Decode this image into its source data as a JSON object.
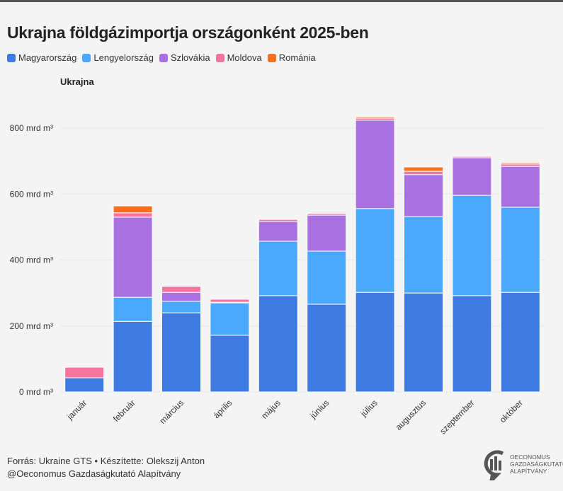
{
  "chart_data": {
    "type": "bar",
    "stacked": true,
    "title": "Ukrajna földgázimportja országonként 2025-ben",
    "ylabel": "Ukrajna",
    "unit": "mrd m³",
    "ylim": [
      0,
      900
    ],
    "yticks": [
      0,
      200,
      400,
      600,
      800
    ],
    "ytick_labels": [
      "0 mrd m³",
      "200 mrd m³",
      "400 mrd m³",
      "600 mrd m³",
      "800 mrd m³"
    ],
    "legend_position": "top-left",
    "categories": [
      "január",
      "február",
      "március",
      "április",
      "május",
      "június",
      "július",
      "augusztus",
      "szeptember",
      "október"
    ],
    "series": [
      {
        "name": "Magyarország",
        "color": "#3d7ae2",
        "values": [
          43,
          214,
          240,
          172,
          292,
          266,
          302,
          300,
          292,
          302
        ]
      },
      {
        "name": "Lengyelország",
        "color": "#4aa8ff",
        "values": [
          0,
          73,
          35,
          98,
          165,
          161,
          254,
          232,
          304,
          258
        ]
      },
      {
        "name": "Szlovákia",
        "color": "#a970e0",
        "values": [
          0,
          243,
          27,
          2,
          60,
          109,
          268,
          127,
          114,
          124
        ]
      },
      {
        "name": "Moldova",
        "color": "#f4749f",
        "values": [
          32,
          13,
          18,
          9,
          6,
          5,
          6,
          10,
          4,
          7
        ]
      },
      {
        "name": "Románia",
        "color": "#f5701f",
        "values": [
          0,
          21,
          0,
          0,
          0,
          0,
          4,
          13,
          0,
          4
        ]
      }
    ]
  },
  "footer": {
    "source": "Forrás: Ukraine GTS • Készítette: Olekszij Anton",
    "copyright": "@Oeconomus Gazdaságkutató Alapítvány"
  },
  "logo": {
    "line1": "OECONOMUS",
    "line2": "GAZDASÁGKUTATÓ",
    "line3": "ALAPÍTVÁNY"
  }
}
